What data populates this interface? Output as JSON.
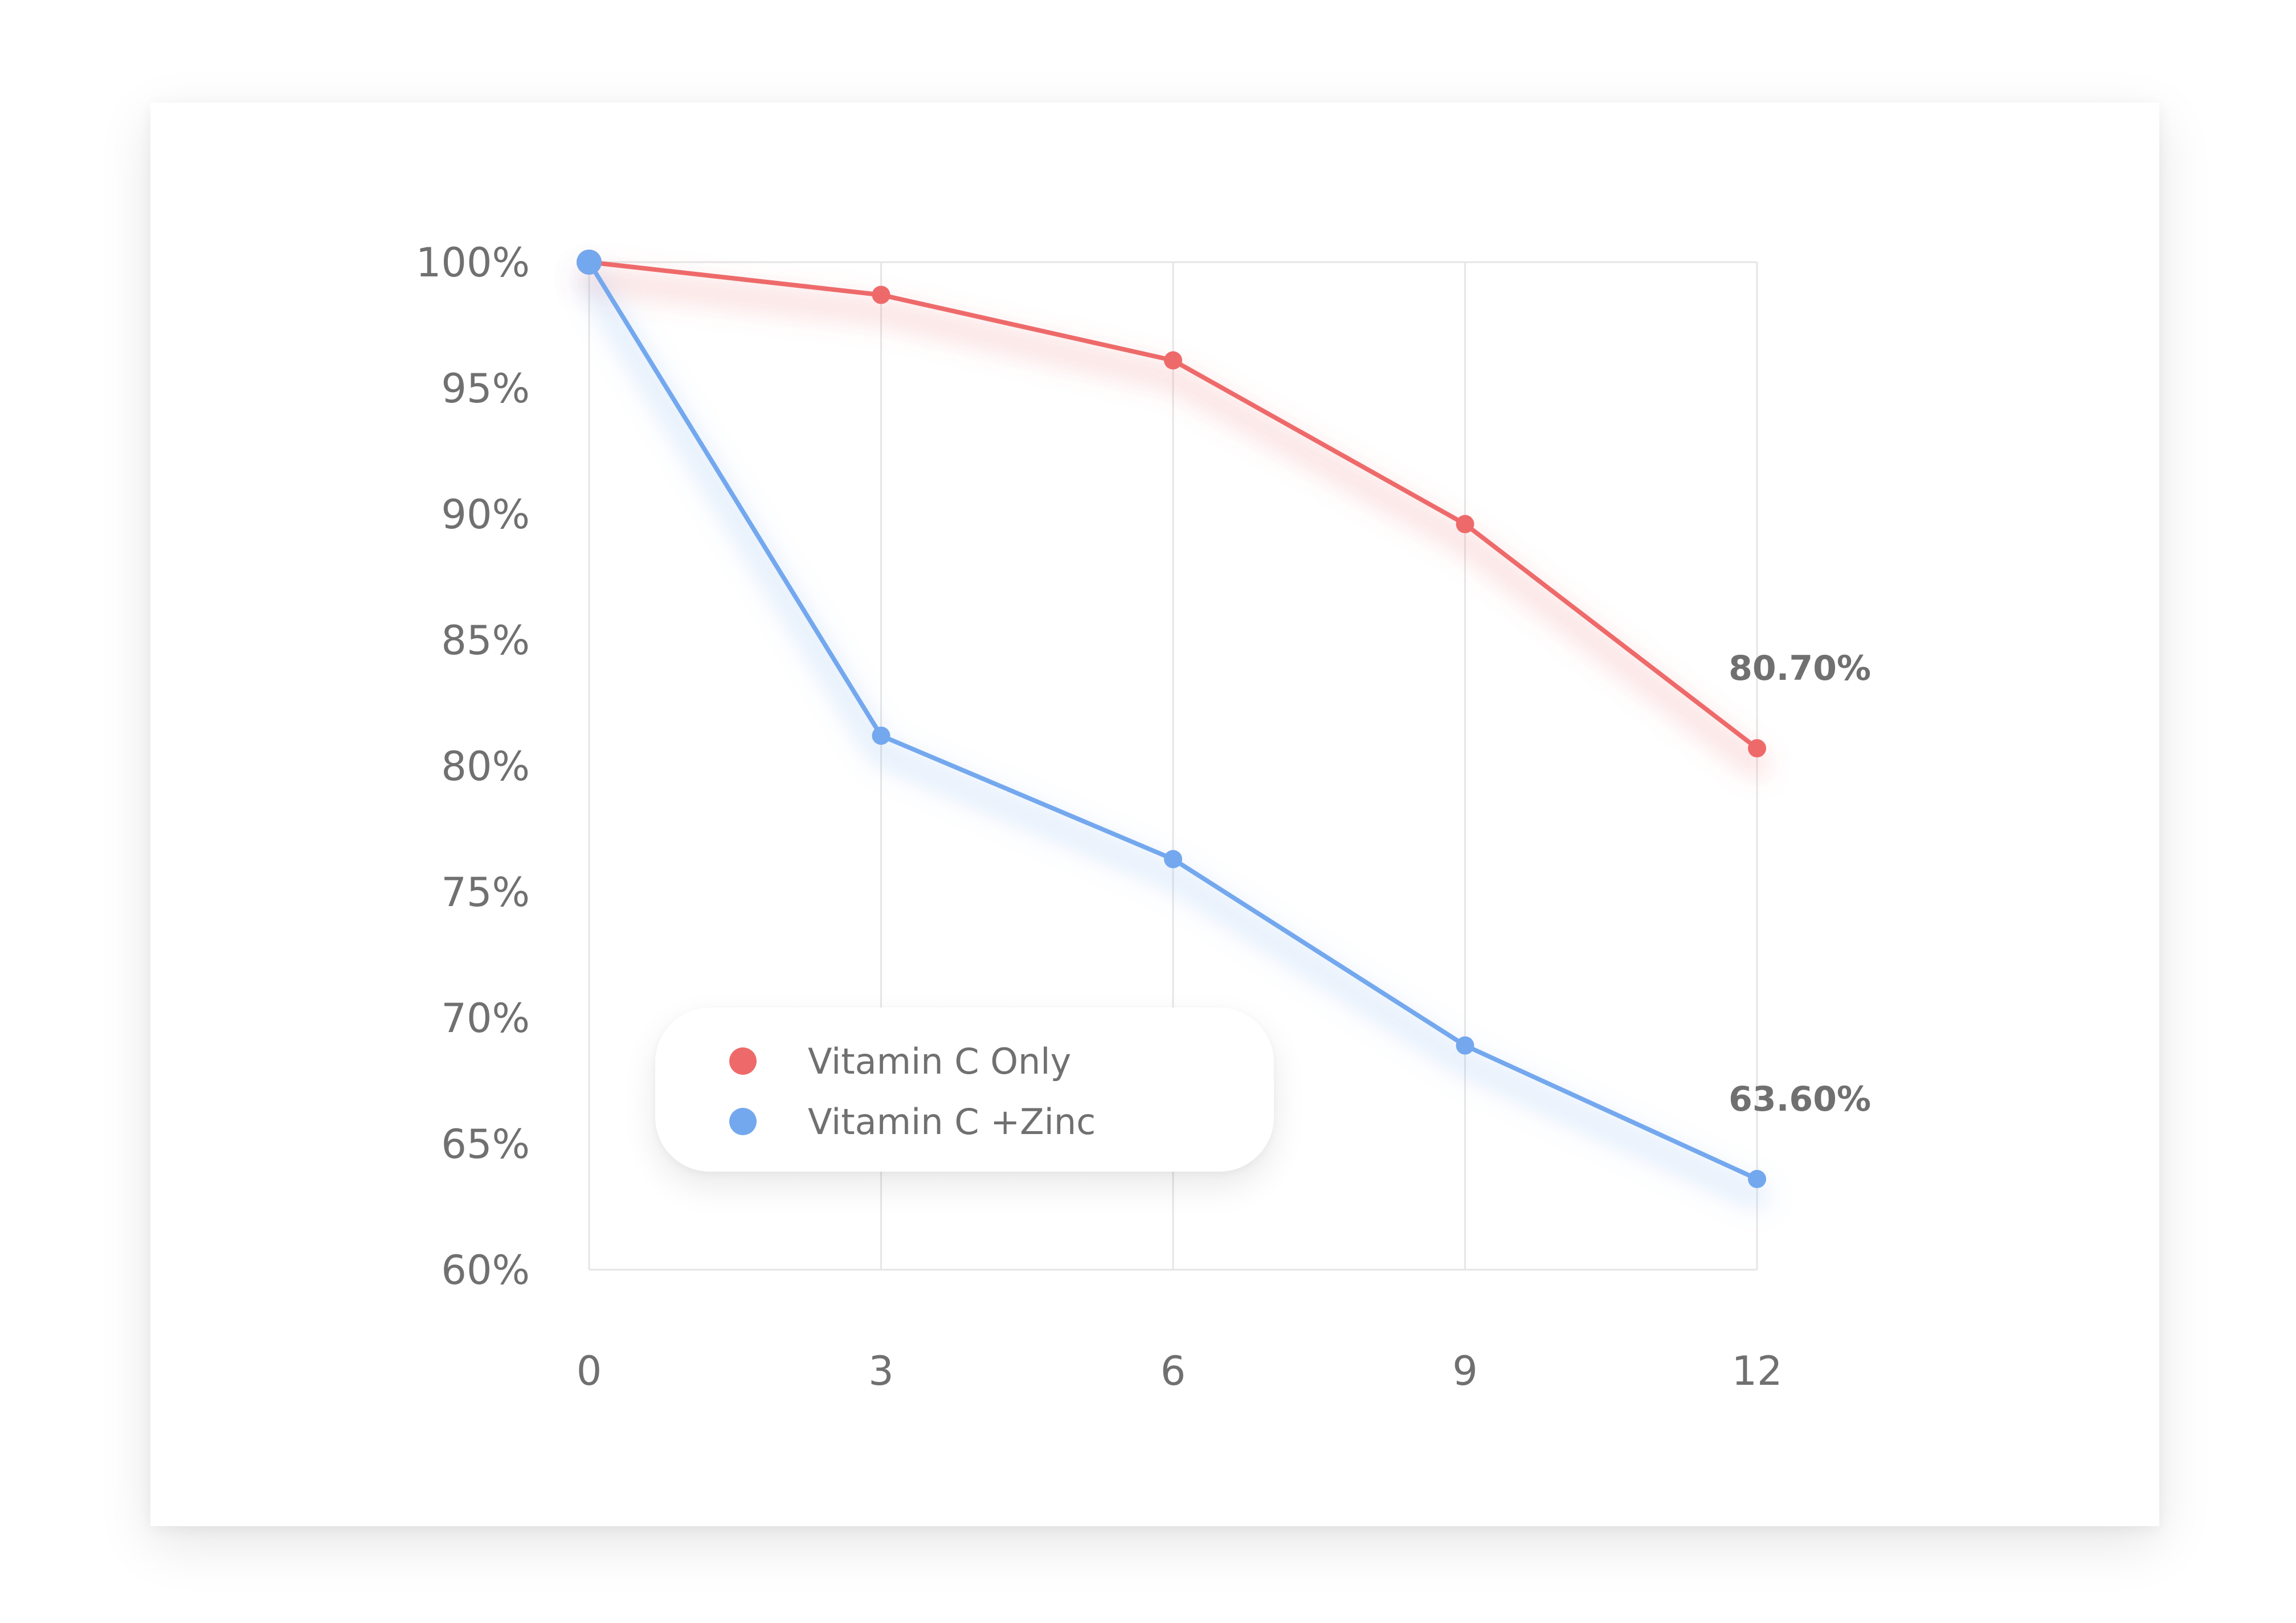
{
  "chart_data": {
    "type": "line",
    "x": [
      0,
      3,
      6,
      9,
      12
    ],
    "x_tick_labels": [
      "0",
      "3",
      "6",
      "9",
      "12"
    ],
    "y_tick_labels": [
      "60%",
      "65%",
      "70%",
      "75%",
      "80%",
      "85%",
      "90%",
      "95%",
      "100%"
    ],
    "ylim": [
      60,
      100
    ],
    "xlim": [
      0,
      12
    ],
    "grid": "vertical",
    "legend_placement": "bottom-left",
    "series": [
      {
        "name": "Vitamin C Only",
        "color": "#EE6A6A",
        "values": [
          100,
          98.7,
          96.1,
          89.6,
          80.7
        ],
        "end_label": "80.70%"
      },
      {
        "name": "Vitamin C +Zinc",
        "color": "#74A8EE",
        "values": [
          100,
          81.2,
          76.3,
          68.9,
          63.6
        ],
        "end_label": "63.60%"
      }
    ]
  }
}
